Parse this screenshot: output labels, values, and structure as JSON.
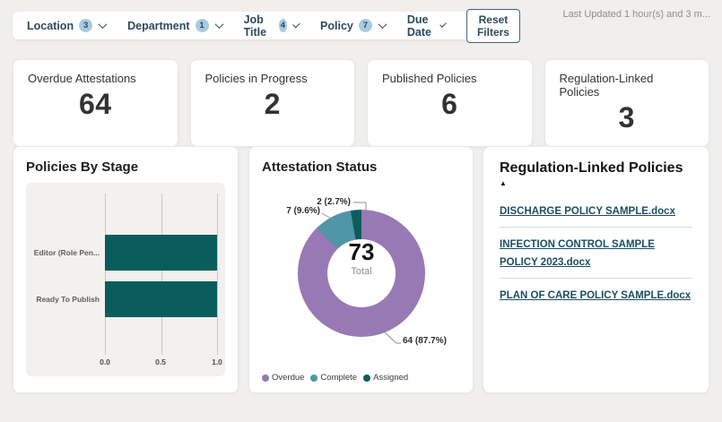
{
  "header": {
    "last_updated": "Last Updated 1 hour(s) and 3 m..."
  },
  "filters": {
    "items": [
      {
        "label": "Location",
        "count": "3"
      },
      {
        "label": "Department",
        "count": "1"
      },
      {
        "label": "Job Title",
        "count": "4"
      },
      {
        "label": "Policy",
        "count": "7"
      },
      {
        "label": "Due Date",
        "count": null
      }
    ],
    "reset_label": "Reset Filters"
  },
  "kpis": [
    {
      "label": "Overdue Attestations",
      "value": "64"
    },
    {
      "label": "Policies in Progress",
      "value": "2"
    },
    {
      "label": "Published Policies",
      "value": "6"
    },
    {
      "label": "Regulation-Linked Policies",
      "value": "3"
    }
  ],
  "chart_data": [
    {
      "type": "bar",
      "orientation": "horizontal",
      "title": "Policies By Stage",
      "categories": [
        "Editor (Role Pen...",
        "Ready To Publish"
      ],
      "values": [
        1.0,
        1.0
      ],
      "xlim": [
        0.0,
        1.0
      ],
      "xticks": [
        "0.0",
        "0.5",
        "1.0"
      ],
      "bar_color": "#0b5d5b",
      "grid": true
    },
    {
      "type": "pie",
      "title": "Attestation Status",
      "center_value": "73",
      "center_label": "Total",
      "legend_position": "bottom",
      "series": [
        {
          "name": "Overdue",
          "value": 64,
          "pct": "87.7%",
          "callout": "64 (87.7%)",
          "color": "#9679b5"
        },
        {
          "name": "Complete",
          "value": 7,
          "pct": "9.6%",
          "callout": "7 (9.6%)",
          "color": "#4e96a8"
        },
        {
          "name": "Assigned",
          "value": 2,
          "pct": "2.7%",
          "callout": "2 (2.7%)",
          "color": "#0b5d5b"
        }
      ]
    }
  ],
  "regulation_panel": {
    "title": "Regulation-Linked Policies",
    "sort_indicator": "▲",
    "links": [
      {
        "label": "DISCHARGE POLICY SAMPLE.docx"
      },
      {
        "label": "INFECTION CONTROL SAMPLE POLICY 2023.docx"
      },
      {
        "label": "PLAN OF CARE POLICY SAMPLE.docx"
      }
    ]
  },
  "colors": {
    "accent_teal": "#0b5d5b",
    "accent_purple": "#9679b5",
    "accent_light_teal": "#4e96a8",
    "filter_text": "#2b4a5e",
    "badge_bg": "#a9cbdf",
    "link": "#1d4e63",
    "page_bg": "#f0efed"
  }
}
